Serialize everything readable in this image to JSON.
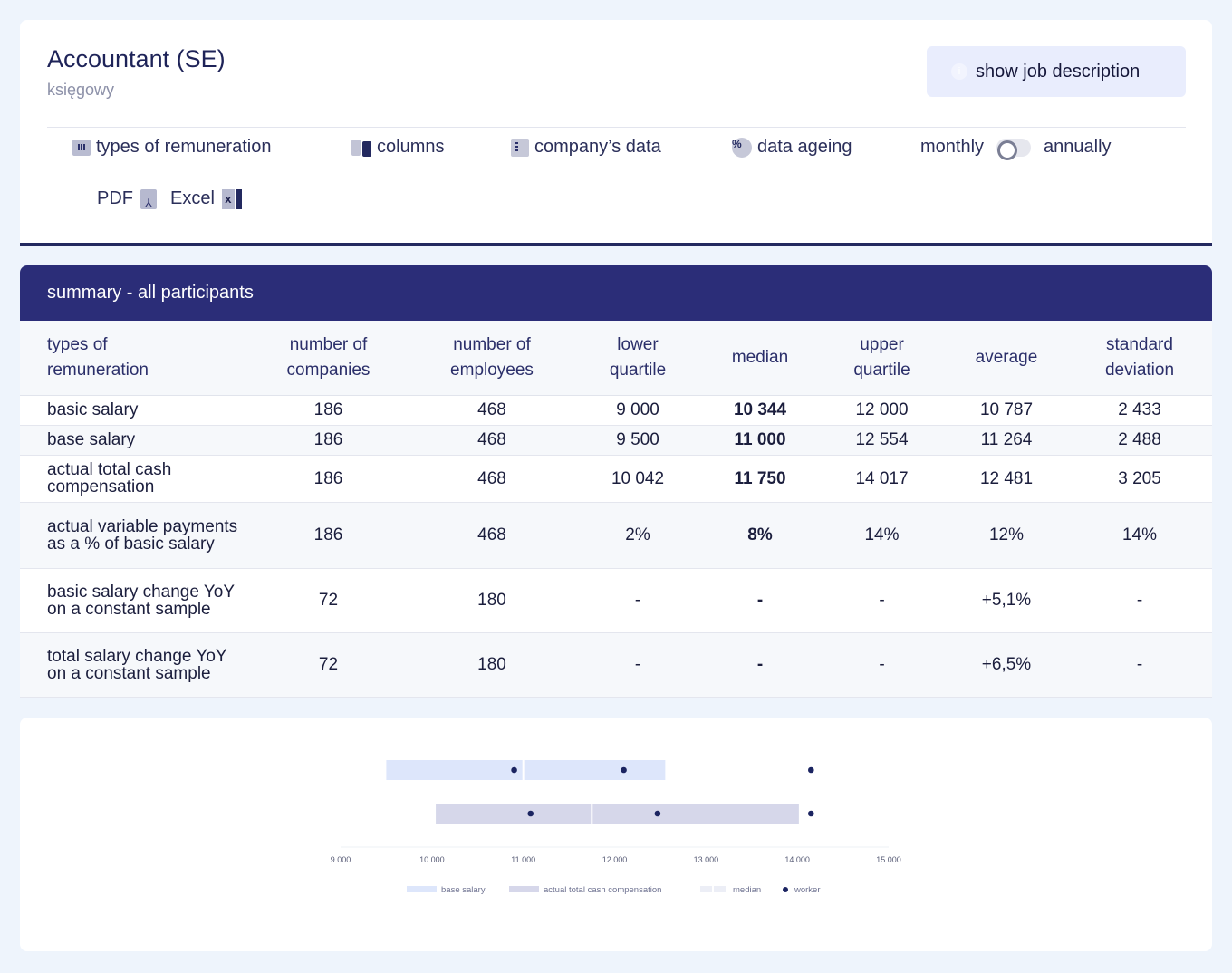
{
  "job": {
    "title": "Accountant (SE)",
    "subtitle": "księgowy",
    "description_button": "show job description",
    "info_icon": "i"
  },
  "toolbar": {
    "remuneration": "types of remuneration",
    "columns": "columns",
    "company_data": "company’s data",
    "data_ageing": "data ageing",
    "percent_icon": "%",
    "monthly": "monthly",
    "annually": "annually",
    "pdf": "PDF",
    "excel": "Excel"
  },
  "summary": {
    "title": "summary - all participants",
    "headers": [
      "types of\nremuneration",
      "number of\ncompanies",
      "number of\nemployees",
      "lower\nquartile",
      "median",
      "upper\nquartile",
      "average",
      "standard\ndeviation"
    ],
    "rows": [
      [
        "basic salary",
        "186",
        "468",
        "9 000",
        "10 344",
        "12 000",
        "10 787",
        "2 433"
      ],
      [
        "base salary",
        "186",
        "468",
        "9 500",
        "11 000",
        "12 554",
        "11 264",
        "2 488"
      ],
      [
        "actual total cash compensation",
        "186",
        "468",
        "10 042",
        "11 750",
        "14 017",
        "12 481",
        "3 205"
      ],
      [
        "actual variable payments as a % of basic salary",
        "186",
        "468",
        "2%",
        "8%",
        "14%",
        "12%",
        "14%"
      ],
      [
        "basic salary change YoY on a constant sample",
        "72",
        "180",
        "-",
        "-",
        "-",
        "+5,1%",
        "-"
      ],
      [
        "total salary change YoY on a constant sample",
        "72",
        "180",
        "-",
        "-",
        "-",
        "+6,5%",
        "-"
      ]
    ]
  },
  "chart_data": {
    "type": "box",
    "xlim": [
      9000,
      15000
    ],
    "ticks": [
      "9 000",
      "10 000",
      "11 000",
      "12 000",
      "13 000",
      "14 000",
      "15 000"
    ],
    "tick_values": [
      9000,
      10000,
      11000,
      12000,
      13000,
      14000,
      15000
    ],
    "series": [
      {
        "name": "base salary",
        "lower": 9500,
        "median": 11000,
        "upper": 12554,
        "points": [
          10900,
          12100,
          14150
        ],
        "color": "#dde6fb"
      },
      {
        "name": "actual total cash compensation",
        "lower": 10042,
        "median": 11750,
        "upper": 14017,
        "points": [
          11080,
          12470,
          14150
        ],
        "color": "#d6d7ea"
      }
    ],
    "legend": [
      "base salary",
      "actual total cash compensation",
      "median",
      "worker"
    ],
    "worker_color": "#1b2461"
  }
}
